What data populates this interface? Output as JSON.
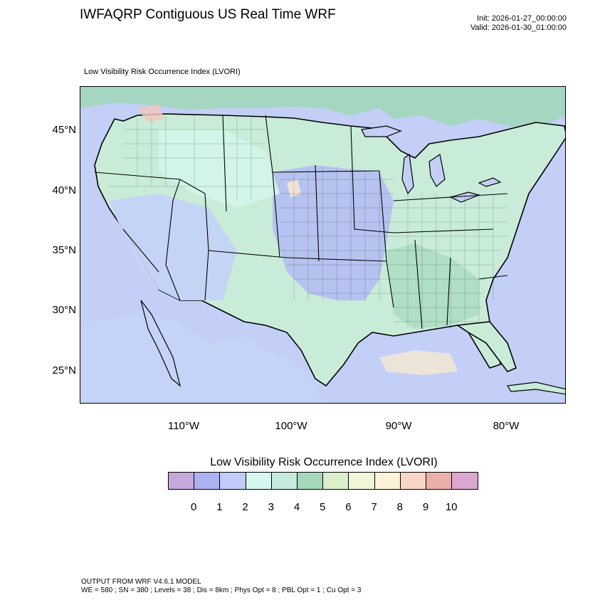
{
  "header": {
    "title": "IWFAQRP Contiguous US Real Time WRF",
    "init": "Init: 2026-01-27_00:00:00",
    "valid": "Valid: 2026-01-30_01:00:00"
  },
  "map": {
    "subtitle": "Low Visibility Risk Occurrence Index   (LVORI)",
    "lat_labels": [
      "45°N",
      "40°N",
      "35°N",
      "30°N",
      "25°N"
    ],
    "lon_labels": [
      "110°W",
      "100°W",
      "90°W",
      "80°W"
    ],
    "colors": {
      "ocean": "#c3cff6",
      "land_low": "#c4d3f7",
      "land_green": "#c9ecd8",
      "land_teal": "#9fd7b8",
      "land_light": "#d3f6ea",
      "land_warm": "#f6e7d2",
      "land_pink": "#f2c7bd",
      "boundary": "#000000"
    }
  },
  "legend": {
    "title": "Low Visibility Risk Occurrence Index  (LVORI)",
    "colors": [
      "#c7a8dc",
      "#acb1ef",
      "#c1cdf8",
      "#d5f7ee",
      "#c6eadb",
      "#a4d8bb",
      "#daefca",
      "#f0f7d9",
      "#fdf3d8",
      "#f8d5c6",
      "#ecb0ac",
      "#dba7ce"
    ],
    "ticks": [
      "0",
      "1",
      "2",
      "3",
      "4",
      "5",
      "6",
      "7",
      "8",
      "9",
      "10"
    ]
  },
  "footer": {
    "line1": "OUTPUT FROM WRF V4.6.1 MODEL",
    "line2": "WE = 580 ; SN = 380 ; Levels = 38 ; Dis = 8km ; Phys Opt = 8 ; PBL Opt = 1 ; Cu Opt = 3"
  }
}
